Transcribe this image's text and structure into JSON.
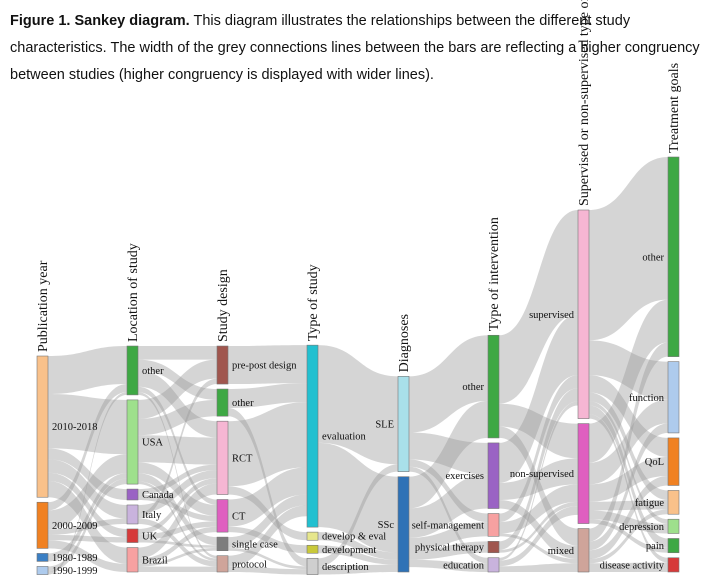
{
  "caption": {
    "label": "Figure 1. Sankey diagram.",
    "text": " This diagram illustrates the relationships between the different study characteristics. The width of the grey connections lines between the bars are reflecting a higher congruency between studies (higher congruency is displayed with wider lines)."
  },
  "diagram": {
    "columns": [
      {
        "id": "pub",
        "title": "Publication year",
        "nodes": [
          {
            "id": "p2010",
            "label": "2010-2018",
            "color": "#f9c18a"
          },
          {
            "id": "p2000",
            "label": "2000-2009",
            "color": "#f08122"
          },
          {
            "id": "p1980",
            "label": "1980-1989",
            "color": "#3b7fc4"
          },
          {
            "id": "p1990",
            "label": "1990-1999",
            "color": "#aecbed"
          }
        ]
      },
      {
        "id": "loc",
        "title": "Location of study",
        "nodes": [
          {
            "id": "l_other",
            "label": "other",
            "color": "#3ea844"
          },
          {
            "id": "l_usa",
            "label": "USA",
            "color": "#9ee08c"
          },
          {
            "id": "l_canada",
            "label": "Canada",
            "color": "#9a63c4"
          },
          {
            "id": "l_italy",
            "label": "Italy",
            "color": "#c9b3dd"
          },
          {
            "id": "l_uk",
            "label": "UK",
            "color": "#d63a3a"
          },
          {
            "id": "l_brazil",
            "label": "Brazil",
            "color": "#f7a1a1"
          }
        ]
      },
      {
        "id": "design",
        "title": "Study design",
        "nodes": [
          {
            "id": "d_prepost",
            "label": "pre-post design",
            "color": "#a0564e"
          },
          {
            "id": "d_other",
            "label": "other",
            "color": "#3ea844"
          },
          {
            "id": "d_rct",
            "label": "RCT",
            "color": "#f6b6d3"
          },
          {
            "id": "d_ct",
            "label": "CT",
            "color": "#df5fc0"
          },
          {
            "id": "d_single",
            "label": "single case",
            "color": "#7d7d7d"
          },
          {
            "id": "d_protocol",
            "label": "protocol",
            "color": "#cfa49a"
          }
        ]
      },
      {
        "id": "type",
        "title": "Type of study",
        "nodes": [
          {
            "id": "t_eval",
            "label": "evaluation",
            "color": "#22c0d0"
          },
          {
            "id": "t_dev_eval",
            "label": "develop & eval",
            "color": "#e6e68c"
          },
          {
            "id": "t_dev",
            "label": "development",
            "color": "#c9c93a"
          },
          {
            "id": "t_desc",
            "label": "description",
            "color": "#cfcfcf"
          }
        ]
      },
      {
        "id": "diag",
        "title": "Diagnoses",
        "nodes": [
          {
            "id": "g_sle",
            "label": "SLE",
            "color": "#a9e0ea"
          },
          {
            "id": "g_ssc",
            "label": "SSc",
            "color": "#2f72b6"
          }
        ]
      },
      {
        "id": "interv",
        "title": "Type of intervention",
        "nodes": [
          {
            "id": "i_other",
            "label": "other",
            "color": "#3ea844"
          },
          {
            "id": "i_ex",
            "label": "exercises",
            "color": "#9a63c4"
          },
          {
            "id": "i_self",
            "label": "self-management",
            "color": "#f7a1a1"
          },
          {
            "id": "i_pt",
            "label": "physical therapy",
            "color": "#a0564e"
          },
          {
            "id": "i_edu",
            "label": "education",
            "color": "#c9b3dd"
          }
        ]
      },
      {
        "id": "sup",
        "title": "Supervised or non-supervised type of intervention",
        "nodes": [
          {
            "id": "s_sup",
            "label": "supervised",
            "color": "#f6b6d3"
          },
          {
            "id": "s_non",
            "label": "non-supervised",
            "color": "#df5fc0"
          },
          {
            "id": "s_mixed",
            "label": "mixed",
            "color": "#cfa49a"
          }
        ]
      },
      {
        "id": "goal",
        "title": "Treatment goals",
        "nodes": [
          {
            "id": "o_other",
            "label": "other",
            "color": "#3ea844"
          },
          {
            "id": "o_func",
            "label": "function",
            "color": "#aecbed"
          },
          {
            "id": "o_qol",
            "label": "QoL",
            "color": "#f08122"
          },
          {
            "id": "o_fat",
            "label": "fatigue",
            "color": "#f9c18a"
          },
          {
            "id": "o_dep",
            "label": "depression",
            "color": "#9ee08c"
          },
          {
            "id": "o_pain",
            "label": "pain",
            "color": "#3ea844"
          },
          {
            "id": "o_dis",
            "label": "disease activity",
            "color": "#d63a3a"
          }
        ]
      }
    ],
    "links": [
      [
        "p2010",
        "l_other",
        14
      ],
      [
        "p2010",
        "l_usa",
        20
      ],
      [
        "p2010",
        "l_canada",
        4
      ],
      [
        "p2010",
        "l_italy",
        5
      ],
      [
        "p2010",
        "l_uk",
        3
      ],
      [
        "p2010",
        "l_brazil",
        6
      ],
      [
        "p2000",
        "l_other",
        3
      ],
      [
        "p2000",
        "l_usa",
        7
      ],
      [
        "p2000",
        "l_italy",
        2
      ],
      [
        "p2000",
        "l_uk",
        2
      ],
      [
        "p2000",
        "l_brazil",
        3
      ],
      [
        "p1980",
        "l_usa",
        2
      ],
      [
        "p1990",
        "l_usa",
        2
      ],
      [
        "p1990",
        "l_other",
        1
      ],
      [
        "l_other",
        "d_prepost",
        5
      ],
      [
        "l_other",
        "d_other",
        4
      ],
      [
        "l_other",
        "d_rct",
        6
      ],
      [
        "l_other",
        "d_ct",
        2
      ],
      [
        "l_other",
        "d_protocol",
        1
      ],
      [
        "l_usa",
        "d_prepost",
        7
      ],
      [
        "l_usa",
        "d_other",
        6
      ],
      [
        "l_usa",
        "d_rct",
        10
      ],
      [
        "l_usa",
        "d_ct",
        4
      ],
      [
        "l_usa",
        "d_single",
        3
      ],
      [
        "l_usa",
        "d_protocol",
        1
      ],
      [
        "l_canada",
        "d_rct",
        2
      ],
      [
        "l_canada",
        "d_ct",
        2
      ],
      [
        "l_italy",
        "d_rct",
        3
      ],
      [
        "l_italy",
        "d_prepost",
        2
      ],
      [
        "l_italy",
        "d_protocol",
        2
      ],
      [
        "l_uk",
        "d_rct",
        2
      ],
      [
        "l_uk",
        "d_ct",
        2
      ],
      [
        "l_uk",
        "d_single",
        1
      ],
      [
        "l_brazil",
        "d_rct",
        4
      ],
      [
        "l_brazil",
        "d_ct",
        2
      ],
      [
        "l_brazil",
        "d_single",
        1
      ],
      [
        "l_brazil",
        "d_protocol",
        2
      ],
      [
        "d_prepost",
        "t_eval",
        14
      ],
      [
        "d_other",
        "t_eval",
        7
      ],
      [
        "d_other",
        "t_desc",
        3
      ],
      [
        "d_rct",
        "t_eval",
        24
      ],
      [
        "d_rct",
        "t_dev_eval",
        3
      ],
      [
        "d_ct",
        "t_eval",
        10
      ],
      [
        "d_ct",
        "t_dev",
        2
      ],
      [
        "d_single",
        "t_eval",
        4
      ],
      [
        "d_single",
        "t_desc",
        1
      ],
      [
        "d_protocol",
        "t_eval",
        4
      ],
      [
        "d_protocol",
        "t_desc",
        2
      ],
      [
        "t_eval",
        "g_sle",
        36
      ],
      [
        "t_eval",
        "g_ssc",
        31
      ],
      [
        "t_dev_eval",
        "g_ssc",
        3
      ],
      [
        "t_dev",
        "g_ssc",
        2
      ],
      [
        "t_desc",
        "g_sle",
        3
      ],
      [
        "t_desc",
        "g_ssc",
        3
      ],
      [
        "g_sle",
        "i_other",
        23
      ],
      [
        "g_sle",
        "i_ex",
        11
      ],
      [
        "g_sle",
        "i_self",
        3
      ],
      [
        "g_sle",
        "i_edu",
        2
      ],
      [
        "g_ssc",
        "i_other",
        13
      ],
      [
        "g_ssc",
        "i_ex",
        12
      ],
      [
        "g_ssc",
        "i_self",
        5
      ],
      [
        "g_ssc",
        "i_pt",
        4
      ],
      [
        "g_ssc",
        "i_edu",
        3
      ],
      [
        "i_other",
        "s_sup",
        24
      ],
      [
        "i_other",
        "s_non",
        8
      ],
      [
        "i_other",
        "s_mixed",
        4
      ],
      [
        "i_ex",
        "s_sup",
        14
      ],
      [
        "i_ex",
        "s_non",
        6
      ],
      [
        "i_ex",
        "s_mixed",
        3
      ],
      [
        "i_self",
        "s_sup",
        3
      ],
      [
        "i_self",
        "s_non",
        4
      ],
      [
        "i_self",
        "s_mixed",
        1
      ],
      [
        "i_pt",
        "s_sup",
        3
      ],
      [
        "i_pt",
        "s_non",
        1
      ],
      [
        "i_edu",
        "s_sup",
        1
      ],
      [
        "i_edu",
        "s_non",
        2
      ],
      [
        "i_edu",
        "s_mixed",
        2
      ],
      [
        "s_sup",
        "o_other",
        30
      ],
      [
        "s_sup",
        "o_func",
        8
      ],
      [
        "s_sup",
        "o_qol",
        4
      ],
      [
        "s_sup",
        "o_fat",
        2
      ],
      [
        "s_sup",
        "o_dep",
        1
      ],
      [
        "s_sup",
        "o_pain",
        2
      ],
      [
        "s_sup",
        "o_dis",
        1
      ],
      [
        "s_non",
        "o_other",
        9
      ],
      [
        "s_non",
        "o_func",
        5
      ],
      [
        "s_non",
        "o_qol",
        4
      ],
      [
        "s_non",
        "o_fat",
        2
      ],
      [
        "s_non",
        "o_dep",
        2
      ],
      [
        "s_non",
        "o_pain",
        1
      ],
      [
        "s_mixed",
        "o_other",
        3
      ],
      [
        "s_mixed",
        "o_func",
        2
      ],
      [
        "s_mixed",
        "o_qol",
        2
      ],
      [
        "s_mixed",
        "o_fat",
        1
      ],
      [
        "s_mixed",
        "o_dis",
        2
      ]
    ]
  }
}
